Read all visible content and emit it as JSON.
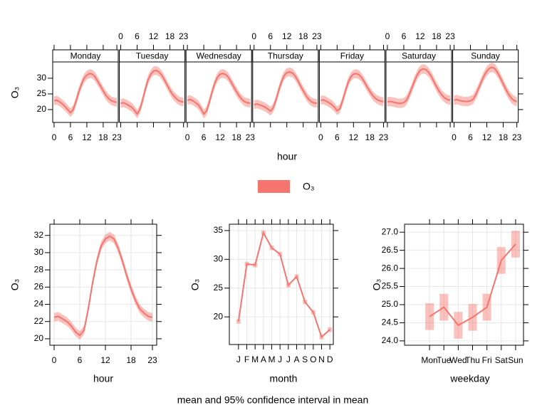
{
  "chart_data": [
    {
      "type": "line",
      "title": "Monday",
      "xlabel": "hour",
      "ylabel": "O₃",
      "x": [
        0,
        1,
        2,
        3,
        4,
        5,
        6,
        7,
        8,
        9,
        10,
        11,
        12,
        13,
        14,
        15,
        16,
        17,
        18,
        19,
        20,
        21,
        22,
        23
      ],
      "xlim": [
        -0.5,
        23.5
      ],
      "xticks": [
        0,
        6,
        12,
        18,
        23
      ],
      "ylim": [
        15.9,
        35.2
      ],
      "yticks": [
        20,
        25,
        30
      ],
      "series": [
        {
          "color": "#f4756d",
          "ci": 1.4,
          "values": [
            22.8,
            23,
            22.5,
            21.8,
            21,
            20,
            19,
            20,
            22.5,
            25.5,
            28,
            30,
            31,
            31.5,
            31.3,
            30.5,
            29,
            27.5,
            26,
            24.5,
            23.5,
            22.8,
            22.5,
            22.3
          ]
        }
      ]
    },
    {
      "type": "line",
      "title": "Tuesday",
      "x": [
        0,
        1,
        2,
        3,
        4,
        5,
        6,
        7,
        8,
        9,
        10,
        11,
        12,
        13,
        14,
        15,
        16,
        17,
        18,
        19,
        20,
        21,
        22,
        23
      ],
      "xlim": [
        -0.5,
        23.5
      ],
      "xticks": [
        0,
        6,
        12,
        18,
        23
      ],
      "ylim": [
        15.9,
        35.2
      ],
      "series": [
        {
          "color": "#f4756d",
          "ci": 1.4,
          "values": [
            22,
            22.2,
            21.8,
            21.3,
            20.8,
            19.8,
            18.6,
            20,
            23,
            26.5,
            29.5,
            31.3,
            32.3,
            32.5,
            32,
            31,
            29.5,
            27.8,
            26.2,
            24.8,
            23.8,
            23,
            22.6,
            22.4
          ]
        }
      ]
    },
    {
      "type": "line",
      "title": "Wednesday",
      "x": [
        0,
        1,
        2,
        3,
        4,
        5,
        6,
        7,
        8,
        9,
        10,
        11,
        12,
        13,
        14,
        15,
        16,
        17,
        18,
        19,
        20,
        21,
        22,
        23
      ],
      "xlim": [
        -0.5,
        23.5
      ],
      "xticks": [
        0,
        6,
        12,
        18,
        23
      ],
      "ylim": [
        15.9,
        35.2
      ],
      "series": [
        {
          "color": "#f4756d",
          "ci": 1.4,
          "values": [
            23,
            23.2,
            22.8,
            22.2,
            21.5,
            20.2,
            18.6,
            19.5,
            22.3,
            25.5,
            28.3,
            30.3,
            31.3,
            31.5,
            31.2,
            30.3,
            28.8,
            27.2,
            25.7,
            24.3,
            23.2,
            22.5,
            22.2,
            22
          ]
        }
      ]
    },
    {
      "type": "line",
      "title": "Thursday",
      "x": [
        0,
        1,
        2,
        3,
        4,
        5,
        6,
        7,
        8,
        9,
        10,
        11,
        12,
        13,
        14,
        15,
        16,
        17,
        18,
        19,
        20,
        21,
        22,
        23
      ],
      "xlim": [
        -0.5,
        23.5
      ],
      "xticks": [
        0,
        6,
        12,
        18,
        23
      ],
      "ylim": [
        15.9,
        35.2
      ],
      "series": [
        {
          "color": "#f4756d",
          "ci": 1.4,
          "values": [
            21.5,
            21.8,
            21.5,
            21.2,
            20.8,
            20.2,
            19.5,
            20.5,
            23,
            26,
            28.8,
            30.8,
            31.8,
            32,
            31.7,
            30.8,
            29.3,
            27.6,
            26,
            24.5,
            23.3,
            22.5,
            22.1,
            22
          ]
        }
      ]
    },
    {
      "type": "line",
      "title": "Friday",
      "x": [
        0,
        1,
        2,
        3,
        4,
        5,
        6,
        7,
        8,
        9,
        10,
        11,
        12,
        13,
        14,
        15,
        16,
        17,
        18,
        19,
        20,
        21,
        22,
        23
      ],
      "xlim": [
        -0.5,
        23.5
      ],
      "xticks": [
        0,
        6,
        12,
        18,
        23
      ],
      "ylim": [
        15.9,
        35.2
      ],
      "series": [
        {
          "color": "#f4756d",
          "ci": 1.4,
          "values": [
            23,
            23.1,
            22.7,
            22.2,
            21.6,
            20.8,
            19.6,
            20.3,
            22.8,
            25.8,
            28.6,
            30.4,
            31.3,
            31.5,
            31.1,
            30.2,
            28.8,
            27.2,
            25.8,
            24.5,
            23.6,
            23,
            22.7,
            22.5
          ]
        }
      ]
    },
    {
      "type": "line",
      "title": "Saturday",
      "x": [
        0,
        1,
        2,
        3,
        4,
        5,
        6,
        7,
        8,
        9,
        10,
        11,
        12,
        13,
        14,
        15,
        16,
        17,
        18,
        19,
        20,
        21,
        22,
        23
      ],
      "xlim": [
        -0.5,
        23.5
      ],
      "xticks": [
        0,
        6,
        12,
        18,
        23
      ],
      "ylim": [
        15.9,
        35.2
      ],
      "series": [
        {
          "color": "#f4756d",
          "ci": 1.5,
          "values": [
            22.5,
            22.6,
            22.4,
            22.2,
            22,
            22,
            22.2,
            23,
            24.8,
            27,
            29.3,
            31.2,
            32.5,
            33,
            32.8,
            32,
            30.7,
            29,
            27.3,
            25.8,
            24.6,
            23.7,
            23.2,
            23
          ]
        }
      ]
    },
    {
      "type": "line",
      "title": "Sunday",
      "x": [
        0,
        1,
        2,
        3,
        4,
        5,
        6,
        7,
        8,
        9,
        10,
        11,
        12,
        13,
        14,
        15,
        16,
        17,
        18,
        19,
        20,
        21,
        22,
        23
      ],
      "xlim": [
        -0.5,
        23.5
      ],
      "xticks": [
        0,
        6,
        12,
        18,
        23
      ],
      "ylim": [
        15.9,
        35.2
      ],
      "series": [
        {
          "color": "#f4756d",
          "ci": 1.5,
          "values": [
            23,
            23.2,
            22.9,
            22.7,
            22.6,
            22.6,
            22.8,
            23.3,
            24.8,
            26.8,
            28.9,
            30.8,
            32.3,
            33.2,
            33.5,
            33,
            31.7,
            30,
            28.2,
            26.4,
            24.8,
            23.6,
            22.9,
            22.5
          ]
        }
      ]
    },
    {
      "type": "line",
      "xlabel": "hour",
      "ylabel": "O₃",
      "x": [
        0,
        1,
        2,
        3,
        4,
        5,
        6,
        7,
        8,
        9,
        10,
        11,
        12,
        13,
        14,
        15,
        16,
        17,
        18,
        19,
        20,
        21,
        22,
        23
      ],
      "xlim": [
        -1,
        24
      ],
      "xticks": [
        0,
        6,
        12,
        18,
        23
      ],
      "ylim": [
        19.25,
        33.3
      ],
      "yticks": [
        20,
        22,
        24,
        26,
        28,
        30,
        32
      ],
      "grid": true,
      "series": [
        {
          "color": "#f4756d",
          "ci": 0.5,
          "values": [
            22.5,
            22.6,
            22.3,
            22,
            21.5,
            20.8,
            20.4,
            21,
            23.5,
            26.5,
            29,
            30.8,
            31.6,
            31.9,
            31.6,
            30.5,
            29,
            27.3,
            25.8,
            24.5,
            23.5,
            23,
            22.6,
            22.5
          ]
        }
      ]
    },
    {
      "type": "category-line",
      "xlabel": "month",
      "ylabel": "O₃",
      "categories": [
        "J",
        "F",
        "M",
        "A",
        "M",
        "J",
        "J",
        "A",
        "S",
        "O",
        "N",
        "D"
      ],
      "ylim": [
        15.2,
        36.1
      ],
      "yticks": [
        20,
        25,
        30,
        35
      ],
      "grid": true,
      "series": [
        {
          "color": "#f4756d",
          "ci": 0.4,
          "values": [
            19.2,
            29.2,
            29,
            34.6,
            32,
            30.9,
            25.5,
            27,
            22.6,
            20.8,
            16.5,
            17.8
          ]
        }
      ]
    },
    {
      "type": "category-line",
      "xlabel": "weekday",
      "ylabel": "O₃",
      "categories": [
        "Mon",
        "Tue",
        "Wed",
        "Thu",
        "Fri",
        "Sat",
        "Sun"
      ],
      "ylim": [
        23.88,
        27.22
      ],
      "yticks": [
        {
          "value": 24,
          "label": "24.0"
        },
        24.5,
        {
          "value": 25,
          "label": "25.0"
        },
        25.5,
        {
          "value": 26,
          "label": "26.0"
        },
        26.5,
        {
          "value": 27,
          "label": "27.0"
        }
      ],
      "grid": true,
      "series": [
        {
          "color": "#f4756d",
          "ci": 0.37,
          "values": [
            24.67,
            24.93,
            24.43,
            24.65,
            24.93,
            26.22,
            26.67
          ]
        }
      ]
    }
  ],
  "legend": {
    "label": "O₃",
    "color": "#f4756d"
  },
  "caption": "mean and 95% confidence interval in mean"
}
